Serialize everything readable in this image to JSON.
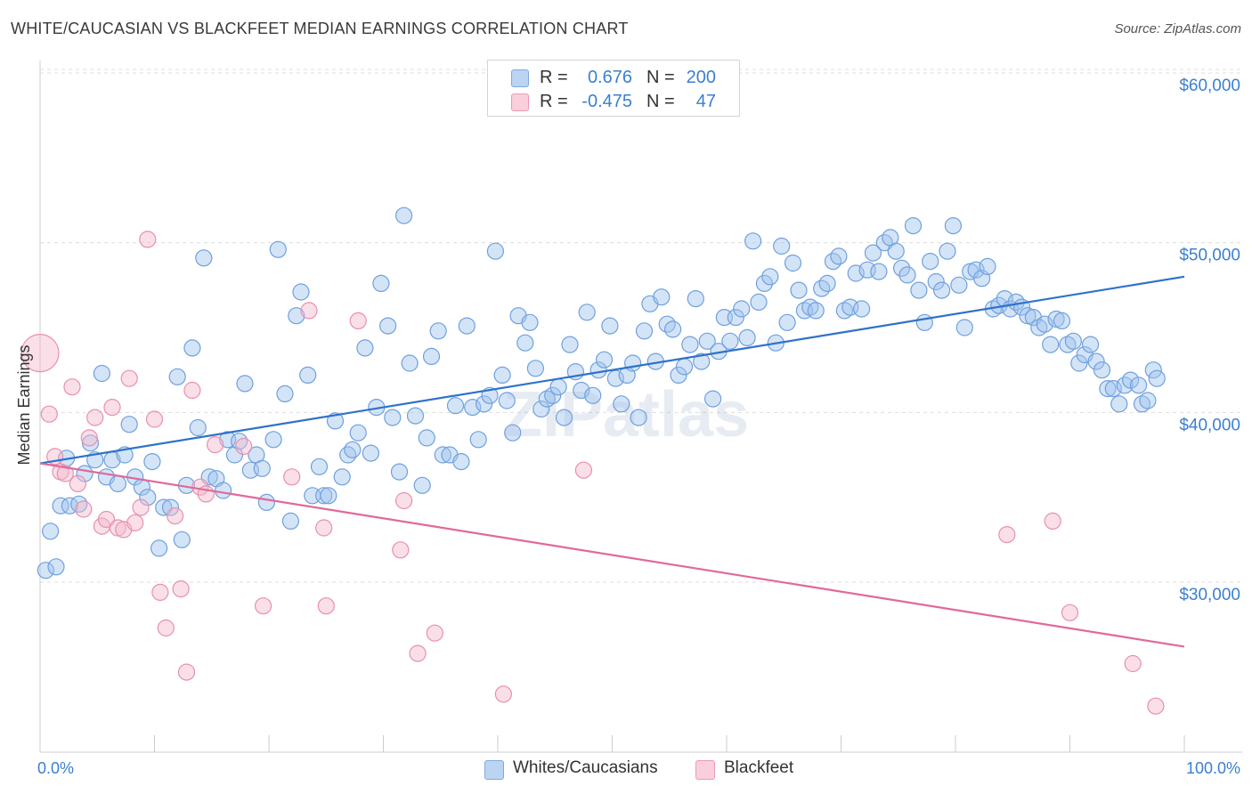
{
  "title": "WHITE/CAUCASIAN VS BLACKFEET MEDIAN EARNINGS CORRELATION CHART",
  "source": "Source: ZipAtlas.com",
  "watermark": "ZIPatlas",
  "legend": {
    "rows": [
      {
        "r_label": "R =",
        "r_value": "0.676",
        "n_label": "N =",
        "n_value": "200",
        "color": "#a9c8ef"
      },
      {
        "r_label": "R =",
        "r_value": "-0.475",
        "n_label": "N =",
        "n_value": "47",
        "color": "#f6bccd"
      }
    ]
  },
  "bottom_legend": [
    {
      "label": "Whites/Caucasians",
      "color": "#a9c8ef"
    },
    {
      "label": "Blackfeet",
      "color": "#f6bccd"
    }
  ],
  "colors": {
    "blue_fill": "rgba(160,195,238,0.45)",
    "blue_stroke": "#6fa0de",
    "blue_line": "#2e72c9",
    "pink_fill": "rgba(245,185,205,0.45)",
    "pink_stroke": "#e890ad",
    "pink_line": "#e0699a",
    "tick": "#3b7fd0"
  },
  "chart_data": {
    "type": "scatter",
    "title": "WHITE/CAUCASIAN VS BLACKFEET MEDIAN EARNINGS CORRELATION CHART",
    "xlabel": "",
    "ylabel": "Median Earnings",
    "x_tick_labels": [
      "0.0%",
      "100.0%"
    ],
    "y_tick_labels": [
      "$30,000",
      "$40,000",
      "$50,000",
      "$60,000"
    ],
    "y_ticks": [
      30000,
      40000,
      50000,
      60000
    ],
    "xlim": [
      0,
      100
    ],
    "ylim": [
      20500,
      61000
    ],
    "grid": true,
    "legend_placement": "top-center",
    "series": [
      {
        "name": "Whites/Caucasians",
        "trend": [
          [
            0,
            37000
          ],
          [
            100,
            48000
          ]
        ],
        "points": [
          [
            0.5,
            30.7
          ],
          [
            0.9,
            33.0
          ],
          [
            1.4,
            30.9
          ],
          [
            1.8,
            34.5
          ],
          [
            2.3,
            37.3
          ],
          [
            2.6,
            34.5
          ],
          [
            3.4,
            34.6
          ],
          [
            3.9,
            36.4
          ],
          [
            4.4,
            38.2
          ],
          [
            4.8,
            37.2
          ],
          [
            5.4,
            42.3
          ],
          [
            5.8,
            36.2
          ],
          [
            6.3,
            37.2
          ],
          [
            6.8,
            35.8
          ],
          [
            7.4,
            37.5
          ],
          [
            7.8,
            39.3
          ],
          [
            8.3,
            36.2
          ],
          [
            8.9,
            35.6
          ],
          [
            9.4,
            35.0
          ],
          [
            9.8,
            37.1
          ],
          [
            10.4,
            32.0
          ],
          [
            10.8,
            34.4
          ],
          [
            11.4,
            34.4
          ],
          [
            12.0,
            42.1
          ],
          [
            12.4,
            32.5
          ],
          [
            12.8,
            35.7
          ],
          [
            13.3,
            43.8
          ],
          [
            13.8,
            39.1
          ],
          [
            14.3,
            49.1
          ],
          [
            14.8,
            36.2
          ],
          [
            15.4,
            36.1
          ],
          [
            16.0,
            35.4
          ],
          [
            16.4,
            38.4
          ],
          [
            17.0,
            37.5
          ],
          [
            17.4,
            38.3
          ],
          [
            17.9,
            41.7
          ],
          [
            18.4,
            36.6
          ],
          [
            18.9,
            37.5
          ],
          [
            19.4,
            36.7
          ],
          [
            19.8,
            34.7
          ],
          [
            20.4,
            38.4
          ],
          [
            20.8,
            49.6
          ],
          [
            21.4,
            41.1
          ],
          [
            21.9,
            33.6
          ],
          [
            22.4,
            45.7
          ],
          [
            22.8,
            47.1
          ],
          [
            23.4,
            42.2
          ],
          [
            23.8,
            35.1
          ],
          [
            24.4,
            36.8
          ],
          [
            24.8,
            35.1
          ],
          [
            25.2,
            35.1
          ],
          [
            25.8,
            39.5
          ],
          [
            26.4,
            36.2
          ],
          [
            26.9,
            37.5
          ],
          [
            27.3,
            37.8
          ],
          [
            27.8,
            38.8
          ],
          [
            28.4,
            43.8
          ],
          [
            28.9,
            37.6
          ],
          [
            29.4,
            40.3
          ],
          [
            29.8,
            47.6
          ],
          [
            30.4,
            45.1
          ],
          [
            30.8,
            39.7
          ],
          [
            31.4,
            36.5
          ],
          [
            31.8,
            51.6
          ],
          [
            32.3,
            42.9
          ],
          [
            32.8,
            39.8
          ],
          [
            33.4,
            35.7
          ],
          [
            33.8,
            38.5
          ],
          [
            34.2,
            43.3
          ],
          [
            34.8,
            44.8
          ],
          [
            35.2,
            37.5
          ],
          [
            35.8,
            37.5
          ],
          [
            36.3,
            40.4
          ],
          [
            36.8,
            37.1
          ],
          [
            37.3,
            45.1
          ],
          [
            37.8,
            40.3
          ],
          [
            38.3,
            38.4
          ],
          [
            38.8,
            40.5
          ],
          [
            39.3,
            41.0
          ],
          [
            39.8,
            49.5
          ],
          [
            40.4,
            42.2
          ],
          [
            40.8,
            40.7
          ],
          [
            41.3,
            38.8
          ],
          [
            41.8,
            45.7
          ],
          [
            42.4,
            44.1
          ],
          [
            42.8,
            45.3
          ],
          [
            43.3,
            42.6
          ],
          [
            43.8,
            40.2
          ],
          [
            44.3,
            40.8
          ],
          [
            44.8,
            41.0
          ],
          [
            45.3,
            41.5
          ],
          [
            45.8,
            39.7
          ],
          [
            46.3,
            44.0
          ],
          [
            46.8,
            42.4
          ],
          [
            47.3,
            41.3
          ],
          [
            47.8,
            45.9
          ],
          [
            48.3,
            41.0
          ],
          [
            48.8,
            42.5
          ],
          [
            49.3,
            43.1
          ],
          [
            49.8,
            45.1
          ],
          [
            50.3,
            42.0
          ],
          [
            50.8,
            40.5
          ],
          [
            51.3,
            42.2
          ],
          [
            51.8,
            42.9
          ],
          [
            52.3,
            39.7
          ],
          [
            52.8,
            44.8
          ],
          [
            53.3,
            46.4
          ],
          [
            53.8,
            43.0
          ],
          [
            54.3,
            46.8
          ],
          [
            54.8,
            45.2
          ],
          [
            55.3,
            44.9
          ],
          [
            55.8,
            42.2
          ],
          [
            56.3,
            42.7
          ],
          [
            56.8,
            44.0
          ],
          [
            57.3,
            46.7
          ],
          [
            57.8,
            43.0
          ],
          [
            58.3,
            44.2
          ],
          [
            58.8,
            40.8
          ],
          [
            59.3,
            43.6
          ],
          [
            59.8,
            45.6
          ],
          [
            60.3,
            44.2
          ],
          [
            60.8,
            45.6
          ],
          [
            61.3,
            46.1
          ],
          [
            61.8,
            44.4
          ],
          [
            62.3,
            50.1
          ],
          [
            62.8,
            46.5
          ],
          [
            63.3,
            47.6
          ],
          [
            63.8,
            48.0
          ],
          [
            64.3,
            44.1
          ],
          [
            64.8,
            49.8
          ],
          [
            65.3,
            45.3
          ],
          [
            65.8,
            48.8
          ],
          [
            66.3,
            47.2
          ],
          [
            66.8,
            46.0
          ],
          [
            67.3,
            46.2
          ],
          [
            67.8,
            46.0
          ],
          [
            68.3,
            47.3
          ],
          [
            68.8,
            47.6
          ],
          [
            69.3,
            48.9
          ],
          [
            69.8,
            49.2
          ],
          [
            70.3,
            46.0
          ],
          [
            70.8,
            46.2
          ],
          [
            71.3,
            48.2
          ],
          [
            71.8,
            46.1
          ],
          [
            72.3,
            48.4
          ],
          [
            72.8,
            49.4
          ],
          [
            73.3,
            48.3
          ],
          [
            73.8,
            50.0
          ],
          [
            74.3,
            50.3
          ],
          [
            74.8,
            49.5
          ],
          [
            75.3,
            48.5
          ],
          [
            75.8,
            48.1
          ],
          [
            76.3,
            51.0
          ],
          [
            76.8,
            47.2
          ],
          [
            77.3,
            45.3
          ],
          [
            77.8,
            48.9
          ],
          [
            78.3,
            47.7
          ],
          [
            78.8,
            47.2
          ],
          [
            79.3,
            49.5
          ],
          [
            79.8,
            51.0
          ],
          [
            80.3,
            47.5
          ],
          [
            80.8,
            45.0
          ],
          [
            81.3,
            48.3
          ],
          [
            81.8,
            48.4
          ],
          [
            82.3,
            47.9
          ],
          [
            82.8,
            48.6
          ],
          [
            83.3,
            46.1
          ],
          [
            83.8,
            46.3
          ],
          [
            84.3,
            46.7
          ],
          [
            84.8,
            46.1
          ],
          [
            85.3,
            46.5
          ],
          [
            85.8,
            46.2
          ],
          [
            86.3,
            45.7
          ],
          [
            86.8,
            45.6
          ],
          [
            87.3,
            45.0
          ],
          [
            87.8,
            45.2
          ],
          [
            88.3,
            44.0
          ],
          [
            88.8,
            45.5
          ],
          [
            89.3,
            45.4
          ],
          [
            89.8,
            44.0
          ],
          [
            90.3,
            44.2
          ],
          [
            90.8,
            42.9
          ],
          [
            91.3,
            43.4
          ],
          [
            91.8,
            44.0
          ],
          [
            92.3,
            43.0
          ],
          [
            92.8,
            42.5
          ],
          [
            93.3,
            41.4
          ],
          [
            93.8,
            41.4
          ],
          [
            94.3,
            40.5
          ],
          [
            94.8,
            41.6
          ],
          [
            95.3,
            41.9
          ],
          [
            96.3,
            40.5
          ],
          [
            96.8,
            40.7
          ],
          [
            97.3,
            42.5
          ],
          [
            96.0,
            41.6
          ],
          [
            97.6,
            42.0
          ]
        ]
      },
      {
        "name": "Blackfeet",
        "trend": [
          [
            0,
            37000
          ],
          [
            100,
            26200
          ]
        ],
        "points": [
          [
            0.0,
            43.5
          ],
          [
            0.8,
            39.9
          ],
          [
            1.3,
            37.4
          ],
          [
            1.8,
            36.5
          ],
          [
            2.2,
            36.4
          ],
          [
            2.8,
            41.5
          ],
          [
            3.3,
            35.8
          ],
          [
            3.8,
            34.3
          ],
          [
            4.3,
            38.5
          ],
          [
            4.8,
            39.7
          ],
          [
            5.4,
            33.3
          ],
          [
            5.8,
            33.7
          ],
          [
            6.3,
            40.3
          ],
          [
            6.8,
            33.2
          ],
          [
            7.3,
            33.1
          ],
          [
            7.8,
            42.0
          ],
          [
            8.3,
            33.5
          ],
          [
            8.8,
            34.4
          ],
          [
            9.4,
            50.2
          ],
          [
            10.0,
            39.6
          ],
          [
            10.5,
            29.4
          ],
          [
            11.0,
            27.3
          ],
          [
            11.8,
            33.9
          ],
          [
            12.3,
            29.6
          ],
          [
            12.8,
            24.7
          ],
          [
            13.3,
            41.3
          ],
          [
            14.0,
            35.6
          ],
          [
            14.5,
            35.2
          ],
          [
            15.3,
            38.1
          ],
          [
            17.8,
            38.0
          ],
          [
            19.5,
            28.6
          ],
          [
            22.0,
            36.2
          ],
          [
            23.5,
            46.0
          ],
          [
            24.8,
            33.2
          ],
          [
            25.0,
            28.6
          ],
          [
            27.8,
            45.4
          ],
          [
            31.5,
            31.9
          ],
          [
            31.8,
            34.8
          ],
          [
            33.0,
            25.8
          ],
          [
            34.5,
            27.0
          ],
          [
            40.5,
            23.4
          ],
          [
            47.5,
            36.6
          ],
          [
            84.5,
            32.8
          ],
          [
            88.5,
            33.6
          ],
          [
            90.0,
            28.2
          ],
          [
            95.5,
            25.2
          ],
          [
            97.5,
            22.7
          ]
        ]
      }
    ]
  }
}
